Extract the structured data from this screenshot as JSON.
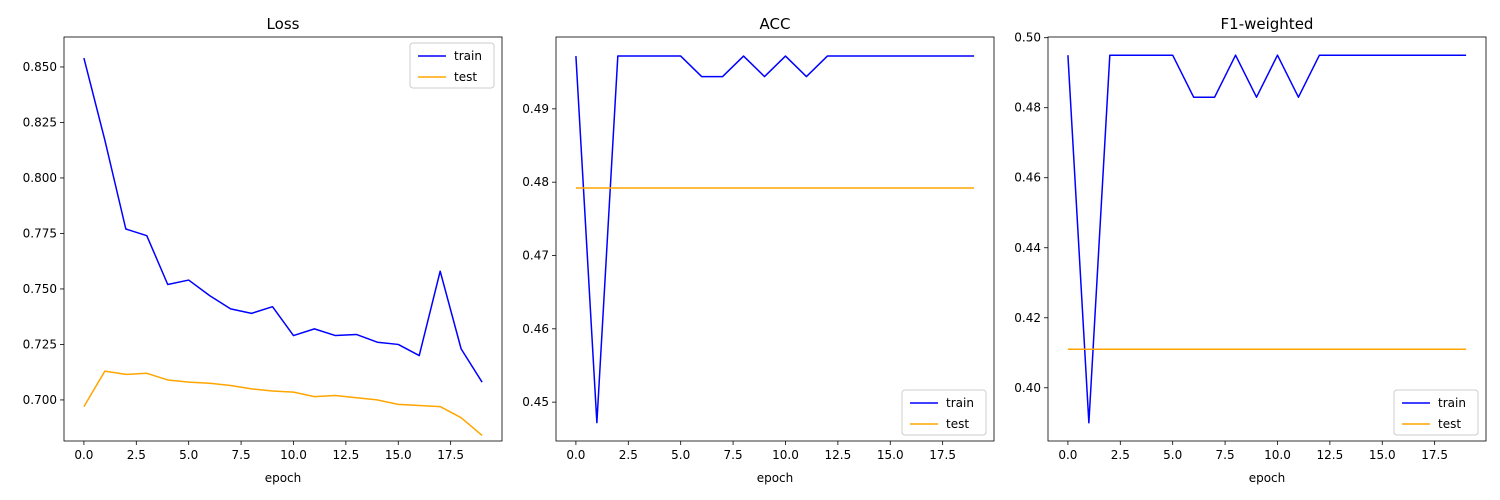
{
  "colors": {
    "train": "#0000ff",
    "test": "#ffa500"
  },
  "chart_data": [
    {
      "type": "line",
      "title": "Loss",
      "xlabel": "epoch",
      "ylabel": "",
      "legend": "top-right",
      "grid": false,
      "xlim": [
        -0.95,
        19.95
      ],
      "ylim": [
        0.6815,
        0.8635
      ],
      "xticks": [
        0,
        2.5,
        5,
        7.5,
        10,
        12.5,
        15,
        17.5
      ],
      "xtick_labels": [
        "0.0",
        "2.5",
        "5.0",
        "7.5",
        "10.0",
        "12.5",
        "15.0",
        "17.5"
      ],
      "yticks": [
        0.7,
        0.725,
        0.75,
        0.775,
        0.8,
        0.825,
        0.85
      ],
      "ytick_labels": [
        "0.700",
        "0.725",
        "0.750",
        "0.775",
        "0.800",
        "0.825",
        "0.850"
      ],
      "x": [
        0,
        1,
        2,
        3,
        4,
        5,
        6,
        7,
        8,
        9,
        10,
        11,
        12,
        13,
        14,
        15,
        16,
        17,
        18,
        19
      ],
      "series": [
        {
          "name": "train",
          "color": "#0000ff",
          "values": [
            0.854,
            0.817,
            0.777,
            0.774,
            0.752,
            0.754,
            0.747,
            0.741,
            0.739,
            0.742,
            0.729,
            0.732,
            0.729,
            0.7295,
            0.726,
            0.725,
            0.72,
            0.758,
            0.723,
            0.708
          ]
        },
        {
          "name": "test",
          "color": "#ffa500",
          "values": [
            0.697,
            0.713,
            0.7115,
            0.712,
            0.709,
            0.708,
            0.7075,
            0.7065,
            0.705,
            0.704,
            0.7035,
            0.7015,
            0.702,
            0.701,
            0.7,
            0.698,
            0.6975,
            0.697,
            0.692,
            0.684
          ]
        }
      ]
    },
    {
      "type": "line",
      "title": "ACC",
      "xlabel": "epoch",
      "ylabel": "",
      "legend": "bottom-right",
      "grid": false,
      "xlim": [
        -0.95,
        19.95
      ],
      "ylim": [
        0.4447,
        0.4998
      ],
      "xticks": [
        0,
        2.5,
        5,
        7.5,
        10,
        12.5,
        15,
        17.5
      ],
      "xtick_labels": [
        "0.0",
        "2.5",
        "5.0",
        "7.5",
        "10.0",
        "12.5",
        "15.0",
        "17.5"
      ],
      "yticks": [
        0.45,
        0.46,
        0.47,
        0.48,
        0.49
      ],
      "ytick_labels": [
        "0.45",
        "0.46",
        "0.47",
        "0.48",
        "0.49"
      ],
      "x": [
        0,
        1,
        2,
        3,
        4,
        5,
        6,
        7,
        8,
        9,
        10,
        11,
        12,
        13,
        14,
        15,
        16,
        17,
        18,
        19
      ],
      "series": [
        {
          "name": "train",
          "color": "#0000ff",
          "values": [
            0.4972,
            0.4472,
            0.4972,
            0.4972,
            0.4972,
            0.4972,
            0.4944,
            0.4944,
            0.4972,
            0.4944,
            0.4972,
            0.4944,
            0.4972,
            0.4972,
            0.4972,
            0.4972,
            0.4972,
            0.4972,
            0.4972,
            0.4972
          ]
        },
        {
          "name": "test",
          "color": "#ffa500",
          "values": [
            0.4792,
            0.4792,
            0.4792,
            0.4792,
            0.4792,
            0.4792,
            0.4792,
            0.4792,
            0.4792,
            0.4792,
            0.4792,
            0.4792,
            0.4792,
            0.4792,
            0.4792,
            0.4792,
            0.4792,
            0.4792,
            0.4792,
            0.4792
          ]
        }
      ]
    },
    {
      "type": "line",
      "title": "F1-weighted",
      "xlabel": "epoch",
      "ylabel": "",
      "legend": "bottom-right",
      "grid": false,
      "xlim": [
        -0.95,
        19.95
      ],
      "ylim": [
        0.3848,
        0.5002
      ],
      "xticks": [
        0,
        2.5,
        5,
        7.5,
        10,
        12.5,
        15,
        17.5
      ],
      "xtick_labels": [
        "0.0",
        "2.5",
        "5.0",
        "7.5",
        "10.0",
        "12.5",
        "15.0",
        "17.5"
      ],
      "yticks": [
        0.4,
        0.42,
        0.44,
        0.46,
        0.48,
        0.5
      ],
      "ytick_labels": [
        "0.40",
        "0.42",
        "0.44",
        "0.46",
        "0.48",
        "0.50"
      ],
      "x": [
        0,
        1,
        2,
        3,
        4,
        5,
        6,
        7,
        8,
        9,
        10,
        11,
        12,
        13,
        14,
        15,
        16,
        17,
        18,
        19
      ],
      "series": [
        {
          "name": "train",
          "color": "#0000ff",
          "values": [
            0.495,
            0.39,
            0.495,
            0.495,
            0.495,
            0.495,
            0.483,
            0.483,
            0.495,
            0.483,
            0.495,
            0.483,
            0.495,
            0.495,
            0.495,
            0.495,
            0.495,
            0.495,
            0.495,
            0.495
          ]
        },
        {
          "name": "test",
          "color": "#ffa500",
          "values": [
            0.411,
            0.411,
            0.411,
            0.411,
            0.411,
            0.411,
            0.411,
            0.411,
            0.411,
            0.411,
            0.411,
            0.411,
            0.411,
            0.411,
            0.411,
            0.411,
            0.411,
            0.411,
            0.411,
            0.411
          ]
        }
      ]
    }
  ]
}
